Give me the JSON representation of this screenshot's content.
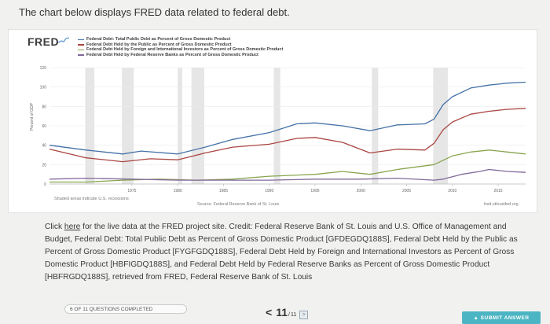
{
  "heading": "The chart below displays FRED data related to federal debt.",
  "chart": {
    "logo": "FRED",
    "y_axis_label": "Percent of GDP",
    "recession_note": "Shaded areas indicate U.S. recessions",
    "source": "Source: Federal Reserve Bank of St. Louis",
    "site": "fred.stlouisfed.org",
    "colors": {
      "total_public_debt": "#4572a7",
      "held_by_public": "#aa4643",
      "foreign_international": "#89a54e",
      "federal_reserve": "#80699b",
      "recession_shade": "#e6e6e6",
      "grid": "#e9e9e9"
    }
  },
  "chart_data": {
    "type": "line",
    "xlim": [
      1966,
      2018
    ],
    "ylim": [
      0,
      120
    ],
    "x_ticks": [
      "1975",
      "1980",
      "1985",
      "1990",
      "1995",
      "2000",
      "2005",
      "2010",
      "2015"
    ],
    "y_ticks": [
      "0",
      "20",
      "40",
      "60",
      "80",
      "100",
      "120"
    ],
    "recessions": [
      [
        1969.9,
        1970.9
      ],
      [
        1973.9,
        1975.2
      ],
      [
        1980.0,
        1980.5
      ],
      [
        1981.5,
        1982.9
      ],
      [
        1990.5,
        1991.2
      ],
      [
        2001.2,
        2001.9
      ],
      [
        2007.9,
        2009.5
      ]
    ],
    "series": [
      {
        "name": "Federal Debt: Total Public Debt as Percent of Gross Domestic Product",
        "x": [
          1966,
          1970,
          1974,
          1976,
          1980,
          1983,
          1986,
          1990,
          1993,
          1995,
          1998,
          2001,
          2004,
          2007,
          2008,
          2009,
          2010,
          2012,
          2014,
          2016,
          2018
        ],
        "values": [
          40,
          35,
          31,
          34,
          31,
          38,
          46,
          53,
          62,
          63,
          60,
          55,
          61,
          62,
          67,
          82,
          90,
          99,
          102,
          104,
          105
        ]
      },
      {
        "name": "Federal Debt Held by the Public as Percent of Gross Domestic Product",
        "x": [
          1966,
          1970,
          1974,
          1977,
          1980,
          1983,
          1986,
          1990,
          1993,
          1995,
          1998,
          2001,
          2004,
          2007,
          2008,
          2009,
          2010,
          2012,
          2014,
          2016,
          2018
        ],
        "values": [
          36,
          27,
          23,
          26,
          25,
          32,
          38,
          41,
          47,
          48,
          43,
          32,
          36,
          35,
          42,
          56,
          64,
          72,
          75,
          77,
          78
        ]
      },
      {
        "name": "Federal Debt Held by Foreign and International Investors as Percent of Gross Domestic Product",
        "x": [
          1966,
          1970,
          1974,
          1978,
          1982,
          1986,
          1990,
          1995,
          1998,
          2001,
          2004,
          2008,
          2010,
          2012,
          2014,
          2016,
          2018
        ],
        "values": [
          2,
          2,
          4,
          5,
          4,
          5,
          8,
          10,
          13,
          10,
          15,
          20,
          29,
          33,
          35,
          33,
          31
        ]
      },
      {
        "name": "Federal Debt Held by Federal Reserve Banks as Percent of Gross Domestic Product",
        "x": [
          1966,
          1970,
          1975,
          1980,
          1985,
          1990,
          1995,
          2000,
          2004,
          2008,
          2009,
          2011,
          2013,
          2014,
          2016,
          2018
        ],
        "values": [
          5,
          6,
          5,
          4,
          4,
          4,
          5,
          5,
          6,
          4,
          5,
          10,
          13,
          15,
          13,
          12
        ]
      }
    ]
  },
  "description": {
    "prefix": "Click ",
    "link": "here",
    "body": " for the live data at the FRED project site. Credit: Federal Reserve Bank of St. Louis and U.S. Office of Management and Budget, Federal Debt: Total Public Debt as Percent of Gross Domestic Product [GFDEGDQ188S], Federal Debt Held by the Public as Percent of Gross Domestic Product [FYGFGDQ188S], Federal Debt Held by Foreign and International Investors as Percent of Gross Domestic Product [HBFIGDQ188S], and Federal Debt Held by Federal Reserve Banks as Percent of Gross Domestic Product [HBFRGDQ188S], retrieved from FRED, Federal Reserve Bank of St. Louis"
  },
  "footer": {
    "progress": "6 OF 11 QUESTIONS COMPLETED",
    "prev": "<",
    "current": "11",
    "separator": "/",
    "total": "11",
    "next": ">",
    "submit": "▲ SUBMIT ANSWER"
  }
}
